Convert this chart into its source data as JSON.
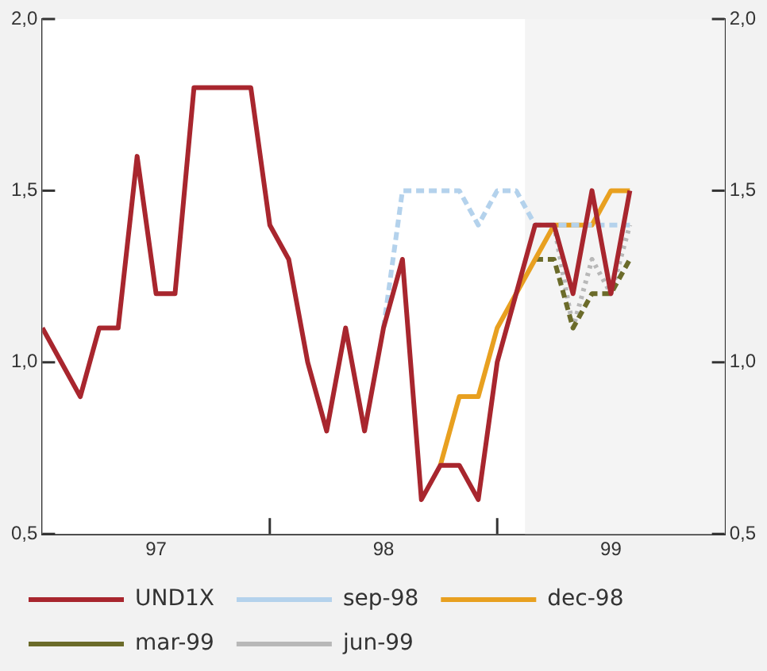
{
  "chart_data": {
    "type": "line",
    "xlim": [
      "1997-01",
      "2000-01"
    ],
    "xticks": [
      {
        "value": "1997-07",
        "label": "97"
      },
      {
        "value": "1998-01",
        "label": null
      },
      {
        "value": "1998-07",
        "label": "98"
      },
      {
        "value": "1999-01",
        "label": null
      },
      {
        "value": "1999-07",
        "label": "99"
      }
    ],
    "ylim": [
      0.5,
      2.0
    ],
    "yticks": [
      {
        "value": 0.5,
        "label": "0,5"
      },
      {
        "value": 1.0,
        "label": "1,0"
      },
      {
        "value": 1.5,
        "label": "1,5"
      },
      {
        "value": 2.0,
        "label": "2,0"
      }
    ],
    "y2lim": [
      0.5,
      2.0
    ],
    "y2ticks": [
      {
        "value": 0.5,
        "label": "0,5"
      },
      {
        "value": 1.0,
        "label": "1,0"
      },
      {
        "value": 1.5,
        "label": "1,5"
      },
      {
        "value": 2.0,
        "label": "2,0"
      }
    ],
    "grid": false,
    "legend": "bottom",
    "marker": "none",
    "bands": [
      {
        "axis": "x",
        "from": "1999-02-15",
        "to": "2000-01",
        "color": "#f4f4f4"
      }
    ],
    "series": [
      {
        "name": "UND1X",
        "color": "#a8262e",
        "line_style": "solid",
        "x": [
          "1997-01",
          "1997-02",
          "1997-03",
          "1997-04",
          "1997-05",
          "1997-06",
          "1997-07",
          "1997-08",
          "1997-09",
          "1997-10",
          "1997-11",
          "1997-12",
          "1998-01",
          "1998-02",
          "1998-03",
          "1998-04",
          "1998-05",
          "1998-06",
          "1998-07",
          "1998-08",
          "1998-09",
          "1998-10",
          "1998-11",
          "1998-12",
          "1999-01",
          "1999-02",
          "1999-03",
          "1999-04",
          "1999-05",
          "1999-06",
          "1999-07",
          "1999-08"
        ],
        "values": [
          1.1,
          1.0,
          0.9,
          1.1,
          1.1,
          1.6,
          1.2,
          1.2,
          1.8,
          1.8,
          1.8,
          1.8,
          1.4,
          1.3,
          1.0,
          0.8,
          1.1,
          0.8,
          1.1,
          1.3,
          0.6,
          0.7,
          0.7,
          0.6,
          1.0,
          1.2,
          1.4,
          1.4,
          1.2,
          1.5,
          1.2,
          1.5
        ]
      },
      {
        "name": "sep-98",
        "color": "#b4d2ec",
        "line_style": "dashed",
        "x": [
          "1998-07",
          "1998-08",
          "1998-09",
          "1998-10",
          "1998-11",
          "1998-12",
          "1999-01",
          "1999-02",
          "1999-03",
          "1999-04",
          "1999-05",
          "1999-06",
          "1999-07",
          "1999-08"
        ],
        "values": [
          1.1,
          1.5,
          1.5,
          1.5,
          1.5,
          1.4,
          1.5,
          1.5,
          1.4,
          1.4,
          1.4,
          1.4,
          1.4,
          1.4
        ]
      },
      {
        "name": "dec-98",
        "color": "#e8a020",
        "line_style": "solid",
        "x": [
          "1998-10",
          "1998-11",
          "1998-12",
          "1999-01",
          "1999-02",
          "1999-03",
          "1999-04",
          "1999-05",
          "1999-06",
          "1999-07",
          "1999-08"
        ],
        "values": [
          0.7,
          0.9,
          0.9,
          1.1,
          1.2,
          1.3,
          1.4,
          1.4,
          1.4,
          1.5,
          1.5
        ]
      },
      {
        "name": "mar-99",
        "color": "#6b6b2a",
        "line_style": "dashed",
        "x": [
          "1999-03",
          "1999-04",
          "1999-05",
          "1999-06",
          "1999-07",
          "1999-08"
        ],
        "values": [
          1.3,
          1.3,
          1.1,
          1.2,
          1.2,
          1.3
        ]
      },
      {
        "name": "jun-99",
        "color": "#b8b8b8",
        "line_style": "dotted",
        "x": [
          "1999-04",
          "1999-05",
          "1999-06",
          "1999-07",
          "1999-08"
        ],
        "values": [
          1.4,
          1.1,
          1.3,
          1.2,
          1.4
        ]
      }
    ]
  }
}
